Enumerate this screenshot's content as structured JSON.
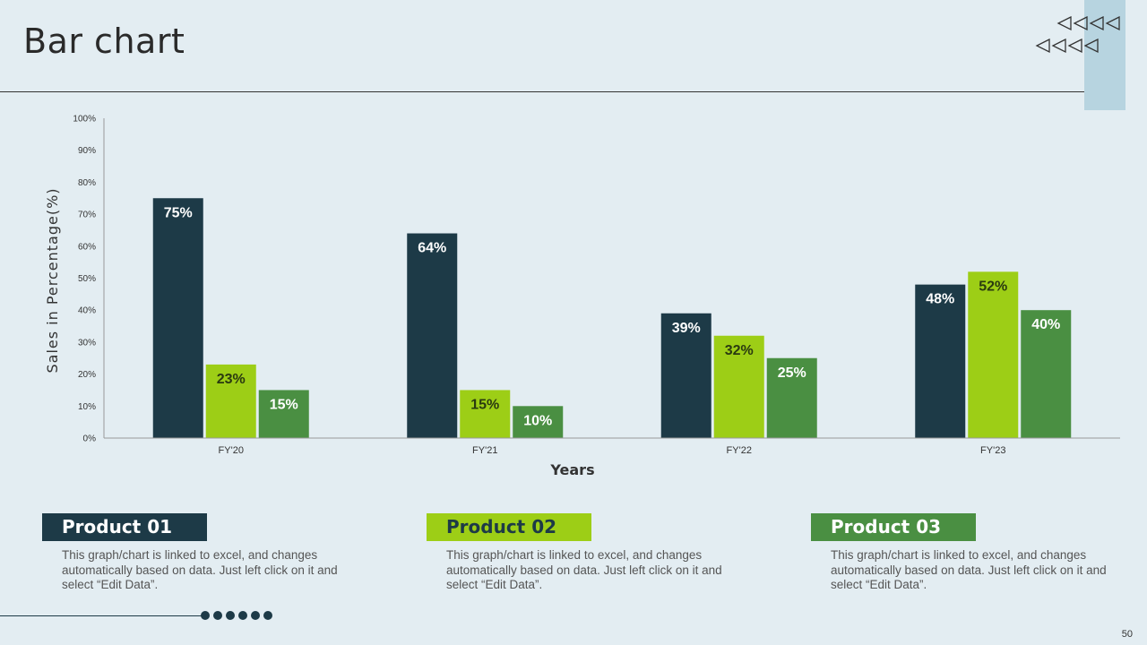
{
  "slide": {
    "title": "Bar chart",
    "page_number": "50"
  },
  "colors": {
    "product_01": "#1d3a47",
    "product_02": "#9dce16",
    "product_03": "#4a8f42",
    "accent_block": "#b7d4e0",
    "background": "#e3edf2"
  },
  "chart_data": {
    "type": "bar",
    "categories": [
      "FY'20",
      "FY'21",
      "FY'22",
      "FY'23"
    ],
    "series": [
      {
        "name": "Product 01",
        "values": [
          75,
          64,
          39,
          48
        ]
      },
      {
        "name": "Product 02",
        "values": [
          23,
          15,
          32,
          52
        ]
      },
      {
        "name": "Product 03",
        "values": [
          15,
          10,
          25,
          40
        ]
      }
    ],
    "xlabel": "Years",
    "ylabel": "Sales in Percentage(%)",
    "ylim": [
      0,
      100
    ],
    "yticks": [
      "0%",
      "10%",
      "20%",
      "30%",
      "40%",
      "50%",
      "60%",
      "70%",
      "80%",
      "90%",
      "100%"
    ],
    "value_suffix": "%"
  },
  "legend": [
    {
      "label": "Product 01",
      "description": "This graph/chart is linked to excel, and changes automatically based on data. Just left click on it and select “Edit Data”."
    },
    {
      "label": "Product 02",
      "description": "This graph/chart is linked to excel, and changes automatically based on data. Just left click on it and select “Edit Data”."
    },
    {
      "label": "Product 03",
      "description": "This graph/chart is linked to excel, and changes automatically based on data. Just left click on it and select “Edit Data”."
    }
  ]
}
